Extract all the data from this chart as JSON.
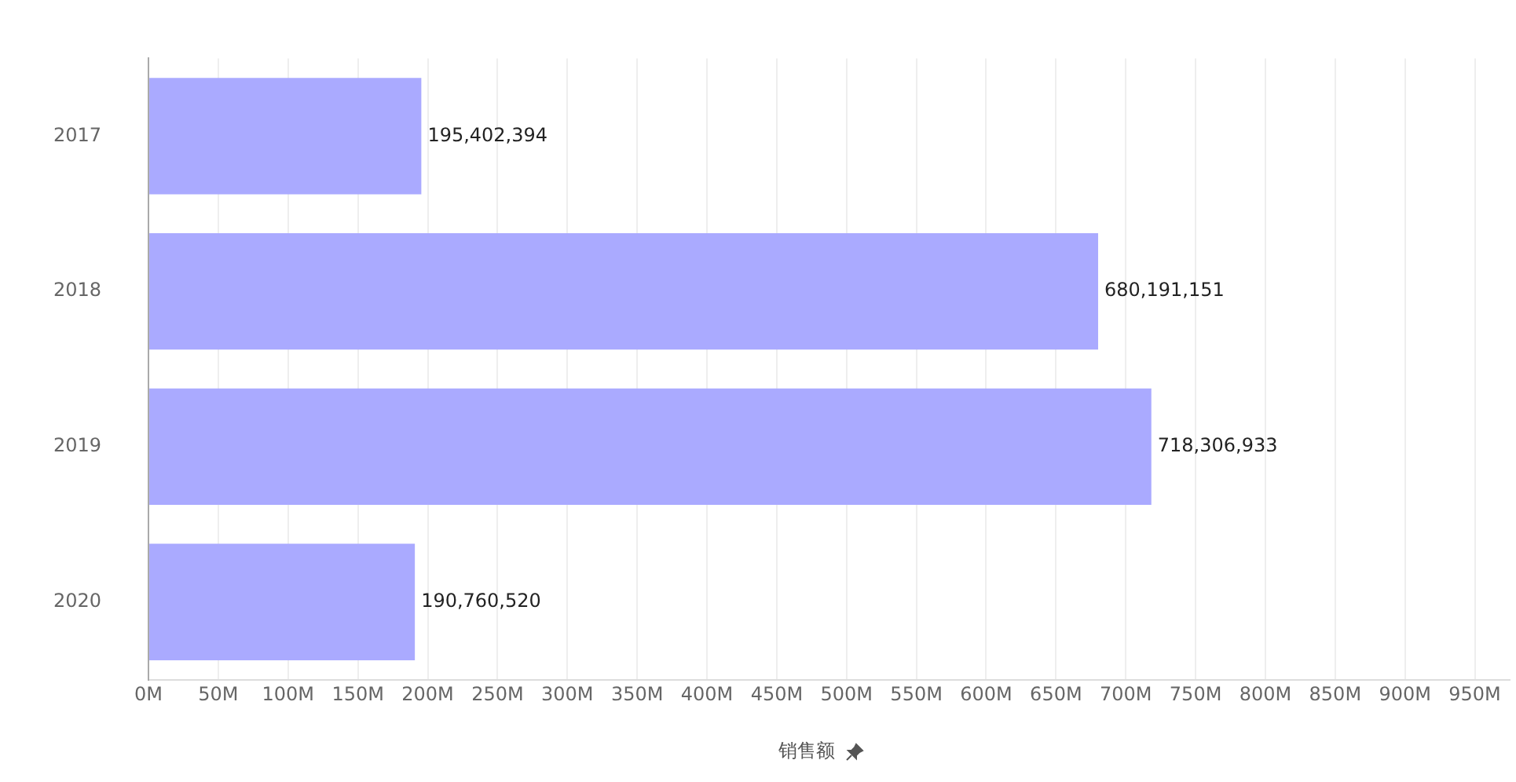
{
  "chart_data": {
    "type": "bar",
    "orientation": "horizontal",
    "categories": [
      "2017",
      "2018",
      "2019",
      "2020"
    ],
    "values": [
      195402394,
      680191151,
      718306933,
      190760520
    ],
    "color": "#aaaaff",
    "value_labels": [
      "195,402,394",
      "680,191,151",
      "718,306,933",
      "190,760,520"
    ],
    "xlabel": "销售额",
    "grid": "x",
    "xlim": [
      0,
      975000000
    ],
    "xticks": [
      {
        "value": 0,
        "label": "0M"
      },
      {
        "value": 50000000,
        "label": "50M"
      },
      {
        "value": 100000000,
        "label": "100M"
      },
      {
        "value": 150000000,
        "label": "150M"
      },
      {
        "value": 200000000,
        "label": "200M"
      },
      {
        "value": 250000000,
        "label": "250M"
      },
      {
        "value": 300000000,
        "label": "300M"
      },
      {
        "value": 350000000,
        "label": "350M"
      },
      {
        "value": 400000000,
        "label": "400M"
      },
      {
        "value": 450000000,
        "label": "450M"
      },
      {
        "value": 500000000,
        "label": "500M"
      },
      {
        "value": 550000000,
        "label": "550M"
      },
      {
        "value": 600000000,
        "label": "600M"
      },
      {
        "value": 650000000,
        "label": "650M"
      },
      {
        "value": 700000000,
        "label": "700M"
      },
      {
        "value": 750000000,
        "label": "750M"
      },
      {
        "value": 800000000,
        "label": "800M"
      },
      {
        "value": 850000000,
        "label": "850M"
      },
      {
        "value": 900000000,
        "label": "900M"
      },
      {
        "value": 950000000,
        "label": "950M"
      }
    ]
  }
}
